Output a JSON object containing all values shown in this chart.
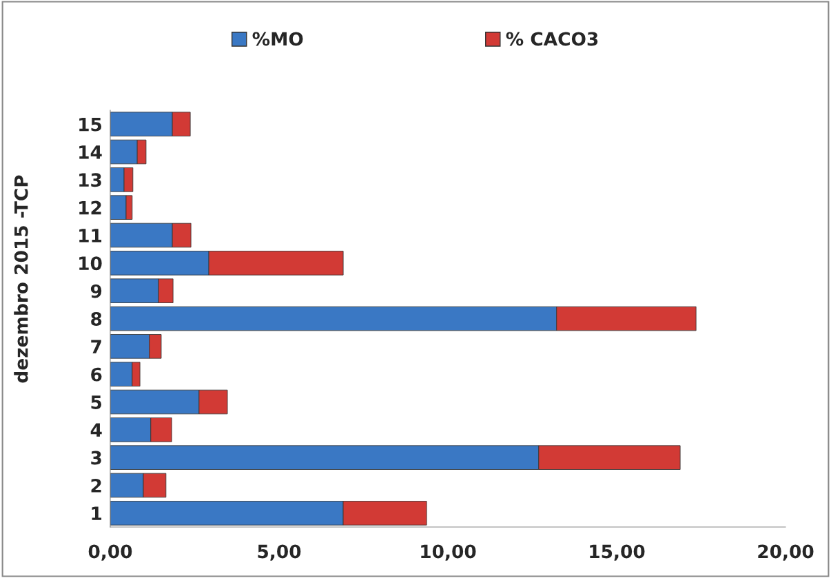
{
  "chart_data": {
    "type": "bar",
    "orientation": "horizontal",
    "stacked": true,
    "ylabel": "dezembro 2015 -TCP",
    "categories": [
      "15",
      "14",
      "13",
      "12",
      "11",
      "10",
      "9",
      "8",
      "7",
      "6",
      "5",
      "4",
      "3",
      "2",
      "1"
    ],
    "series": [
      {
        "name": "%MO",
        "color": "#3a78c4",
        "values": [
          1.84,
          0.8,
          0.41,
          0.47,
          1.84,
          2.92,
          1.43,
          13.22,
          1.16,
          0.65,
          2.63,
          1.2,
          12.69,
          0.98,
          6.9
        ]
      },
      {
        "name": "% CACO3",
        "color": "#d23a35",
        "values": [
          0.53,
          0.26,
          0.26,
          0.18,
          0.55,
          3.98,
          0.43,
          4.13,
          0.35,
          0.23,
          0.84,
          0.62,
          4.19,
          0.67,
          2.47
        ]
      }
    ],
    "xlim": [
      0,
      20
    ],
    "xticks": [
      {
        "value": 0,
        "label": "0,00"
      },
      {
        "value": 5,
        "label": "5,00"
      },
      {
        "value": 10,
        "label": "10,00"
      },
      {
        "value": 15,
        "label": "15,00"
      },
      {
        "value": 20,
        "label": "20,00"
      }
    ],
    "grid": false,
    "legend": "top"
  }
}
